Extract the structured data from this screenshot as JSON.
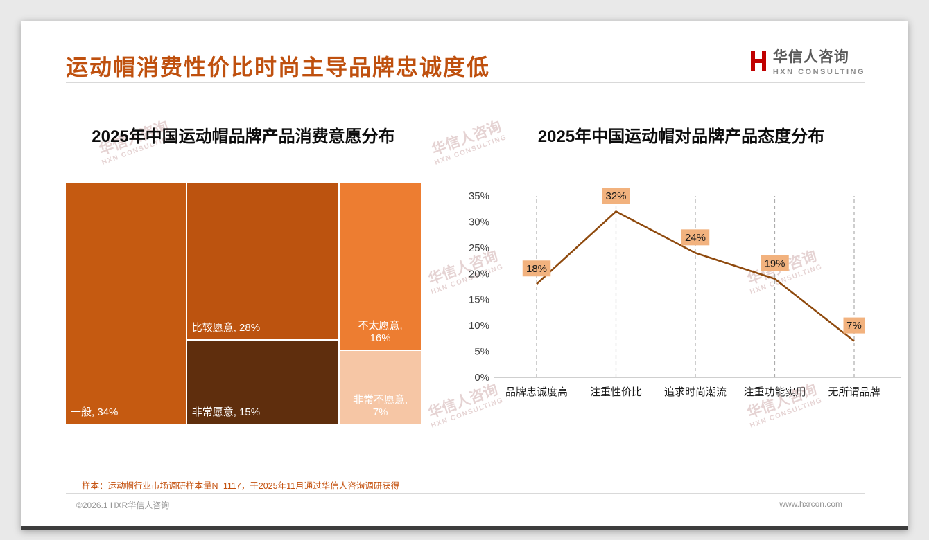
{
  "page": {
    "title": "运动帽消费性价比时尚主导品牌忠诚度低",
    "sample_note": "样本：运动帽行业市场调研样本量N=1117，于2025年11月通过华信人咨询调研获得",
    "footer_left": "©2026.1 HXR华信人咨询",
    "footer_right": "www.hxrcon.com"
  },
  "logo": {
    "name": "华信人咨询",
    "subtitle": "HXN CONSULTING",
    "mark_color": "#c00000"
  },
  "watermark": {
    "line1": "华信人咨询",
    "line2": "HXN CONSULTING"
  },
  "chart_data": [
    {
      "type": "treemap",
      "title": "2025年中国运动帽品牌产品消费意愿分布",
      "items": [
        {
          "label": "一般",
          "value": 34,
          "color": "#c55a11",
          "text_color": "#ffffff",
          "label_pos": "bottom-left"
        },
        {
          "label": "比较愿意",
          "value": 28,
          "color": "#bc530f",
          "text_color": "#ffffff",
          "label_pos": "bottom-left"
        },
        {
          "label": "非常愿意",
          "value": 15,
          "color": "#5f2e0d",
          "text_color": "#ffffff",
          "label_pos": "bottom-left"
        },
        {
          "label": "不太愿意",
          "value": 16,
          "color": "#ed7d31",
          "text_color": "#ffffff",
          "label_pos": "bottom-center"
        },
        {
          "label": "非常不愿意",
          "value": 7,
          "color": "#f6c6a5",
          "text_color": "#ffffff",
          "label_pos": "bottom-center"
        }
      ],
      "layout_columns": [
        [
          0
        ],
        [
          1,
          2
        ],
        [
          3,
          4
        ]
      ]
    },
    {
      "type": "line",
      "title": "2025年中国运动帽对品牌产品态度分布",
      "categories": [
        "品牌忠诚度高",
        "注重性价比",
        "追求时尚潮流",
        "注重功能实用",
        "无所谓品牌"
      ],
      "values": [
        18,
        32,
        24,
        19,
        7
      ],
      "ylim": [
        0,
        35
      ],
      "ytick_step": 5,
      "grid": "vertical-dashed",
      "legend": "none",
      "line_color": "#8f4a0e",
      "label_bg": "#f2b27e",
      "label_text_color": "#1a1a1a"
    }
  ]
}
